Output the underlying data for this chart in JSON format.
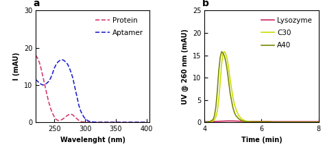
{
  "panel_a": {
    "title": "a",
    "xlabel": "Wavelenght (nm)",
    "ylabel": "I (mAU)",
    "xlim": [
      220,
      405
    ],
    "ylim": [
      0,
      30
    ],
    "xticks": [
      250,
      300,
      350,
      400
    ],
    "yticks": [
      0,
      10,
      20,
      30
    ],
    "protein_color": "#d63a6e",
    "aptamer_color": "#2222cc",
    "protein_x": [
      220,
      223,
      226,
      229,
      232,
      235,
      238,
      241,
      244,
      247,
      250,
      253,
      256,
      259,
      262,
      265,
      268,
      271,
      274,
      277,
      280,
      285,
      290,
      295,
      300,
      310,
      320,
      330,
      340,
      350,
      360,
      370,
      380,
      390,
      400
    ],
    "protein_y": [
      18.0,
      17.2,
      16.0,
      14.2,
      12.0,
      9.8,
      7.5,
      5.5,
      3.8,
      2.5,
      1.5,
      0.8,
      0.5,
      0.5,
      0.7,
      1.0,
      1.4,
      1.8,
      2.1,
      2.2,
      2.0,
      1.2,
      0.5,
      0.1,
      0.05,
      0.0,
      0.0,
      0.0,
      0.0,
      0.0,
      0.0,
      0.0,
      0.0,
      0.0,
      0.0
    ],
    "aptamer_x": [
      220,
      223,
      226,
      229,
      232,
      235,
      238,
      241,
      244,
      247,
      250,
      253,
      256,
      259,
      262,
      265,
      268,
      270,
      272,
      274,
      276,
      278,
      280,
      282,
      284,
      286,
      288,
      290,
      293,
      296,
      299,
      302,
      306,
      312,
      320,
      330,
      340,
      350,
      360,
      370,
      380,
      390,
      400
    ],
    "aptamer_y": [
      11.5,
      11.0,
      10.5,
      10.2,
      10.0,
      10.2,
      10.5,
      11.0,
      11.8,
      13.0,
      14.5,
      15.5,
      16.2,
      16.6,
      16.8,
      16.7,
      16.3,
      16.0,
      15.5,
      14.8,
      14.0,
      13.0,
      12.0,
      10.5,
      9.0,
      7.5,
      6.0,
      4.5,
      3.0,
      2.0,
      1.2,
      0.7,
      0.3,
      0.1,
      0.0,
      0.0,
      0.0,
      0.0,
      0.0,
      0.0,
      0.0,
      0.0,
      0.0
    ]
  },
  "panel_b": {
    "title": "b",
    "xlabel": "Time (min)",
    "ylabel": "UV @ 260 nm (mAU)",
    "xlim": [
      4,
      8
    ],
    "ylim": [
      0,
      25
    ],
    "xticks": [
      4,
      6,
      8
    ],
    "yticks": [
      0,
      5,
      10,
      15,
      20,
      25
    ],
    "lysozyme_color": "#cc2255",
    "c30_color": "#ccdd00",
    "a40_color": "#7a8800",
    "lysozyme_x": [
      4.0,
      4.2,
      4.4,
      4.6,
      4.8,
      5.0,
      5.2,
      5.4,
      5.6,
      5.8,
      6.0,
      6.2,
      6.4,
      6.6,
      6.8,
      7.0,
      7.2,
      7.4,
      7.6,
      7.8,
      8.0
    ],
    "lysozyme_y": [
      0.15,
      0.15,
      0.2,
      0.25,
      0.3,
      0.3,
      0.25,
      0.2,
      0.2,
      0.2,
      0.2,
      0.2,
      0.15,
      0.15,
      0.15,
      0.15,
      0.15,
      0.15,
      0.15,
      0.15,
      0.15
    ],
    "c30_x": [
      4.0,
      4.1,
      4.2,
      4.3,
      4.35,
      4.4,
      4.45,
      4.5,
      4.55,
      4.6,
      4.65,
      4.7,
      4.75,
      4.8,
      4.85,
      4.9,
      4.95,
      5.0,
      5.05,
      5.1,
      5.15,
      5.2,
      5.3,
      5.4,
      5.5,
      5.6,
      5.7,
      5.8,
      5.9,
      6.0,
      6.2,
      6.5,
      7.0,
      7.5,
      8.0
    ],
    "c30_y": [
      0.0,
      0.05,
      0.1,
      0.3,
      0.6,
      1.2,
      2.5,
      5.0,
      9.0,
      13.0,
      15.5,
      15.8,
      15.2,
      14.0,
      12.0,
      9.5,
      7.5,
      5.5,
      4.0,
      3.0,
      2.2,
      1.5,
      0.8,
      0.4,
      0.2,
      0.15,
      0.1,
      0.1,
      0.1,
      0.1,
      0.1,
      0.05,
      0.05,
      0.05,
      0.05
    ],
    "a40_x": [
      4.0,
      4.1,
      4.2,
      4.3,
      4.35,
      4.4,
      4.45,
      4.5,
      4.55,
      4.6,
      4.65,
      4.7,
      4.75,
      4.8,
      4.85,
      4.9,
      4.95,
      5.0,
      5.05,
      5.1,
      5.2,
      5.3,
      5.4,
      5.5,
      5.6,
      5.7,
      5.8,
      5.9,
      6.0,
      6.2,
      6.5,
      7.0,
      7.5,
      8.0
    ],
    "a40_y": [
      0.0,
      0.05,
      0.2,
      0.6,
      1.5,
      3.5,
      7.0,
      11.5,
      14.5,
      15.8,
      15.5,
      14.8,
      13.5,
      11.5,
      9.0,
      6.5,
      4.8,
      3.2,
      2.2,
      1.5,
      0.8,
      0.4,
      0.2,
      0.15,
      0.1,
      0.1,
      0.1,
      0.1,
      0.1,
      0.1,
      0.05,
      0.05,
      0.05,
      0.05
    ]
  },
  "background_color": "#ffffff",
  "label_fontsize": 7,
  "tick_fontsize": 7,
  "legend_fontsize": 7.5,
  "title_fontsize": 10,
  "line_width": 1.2
}
